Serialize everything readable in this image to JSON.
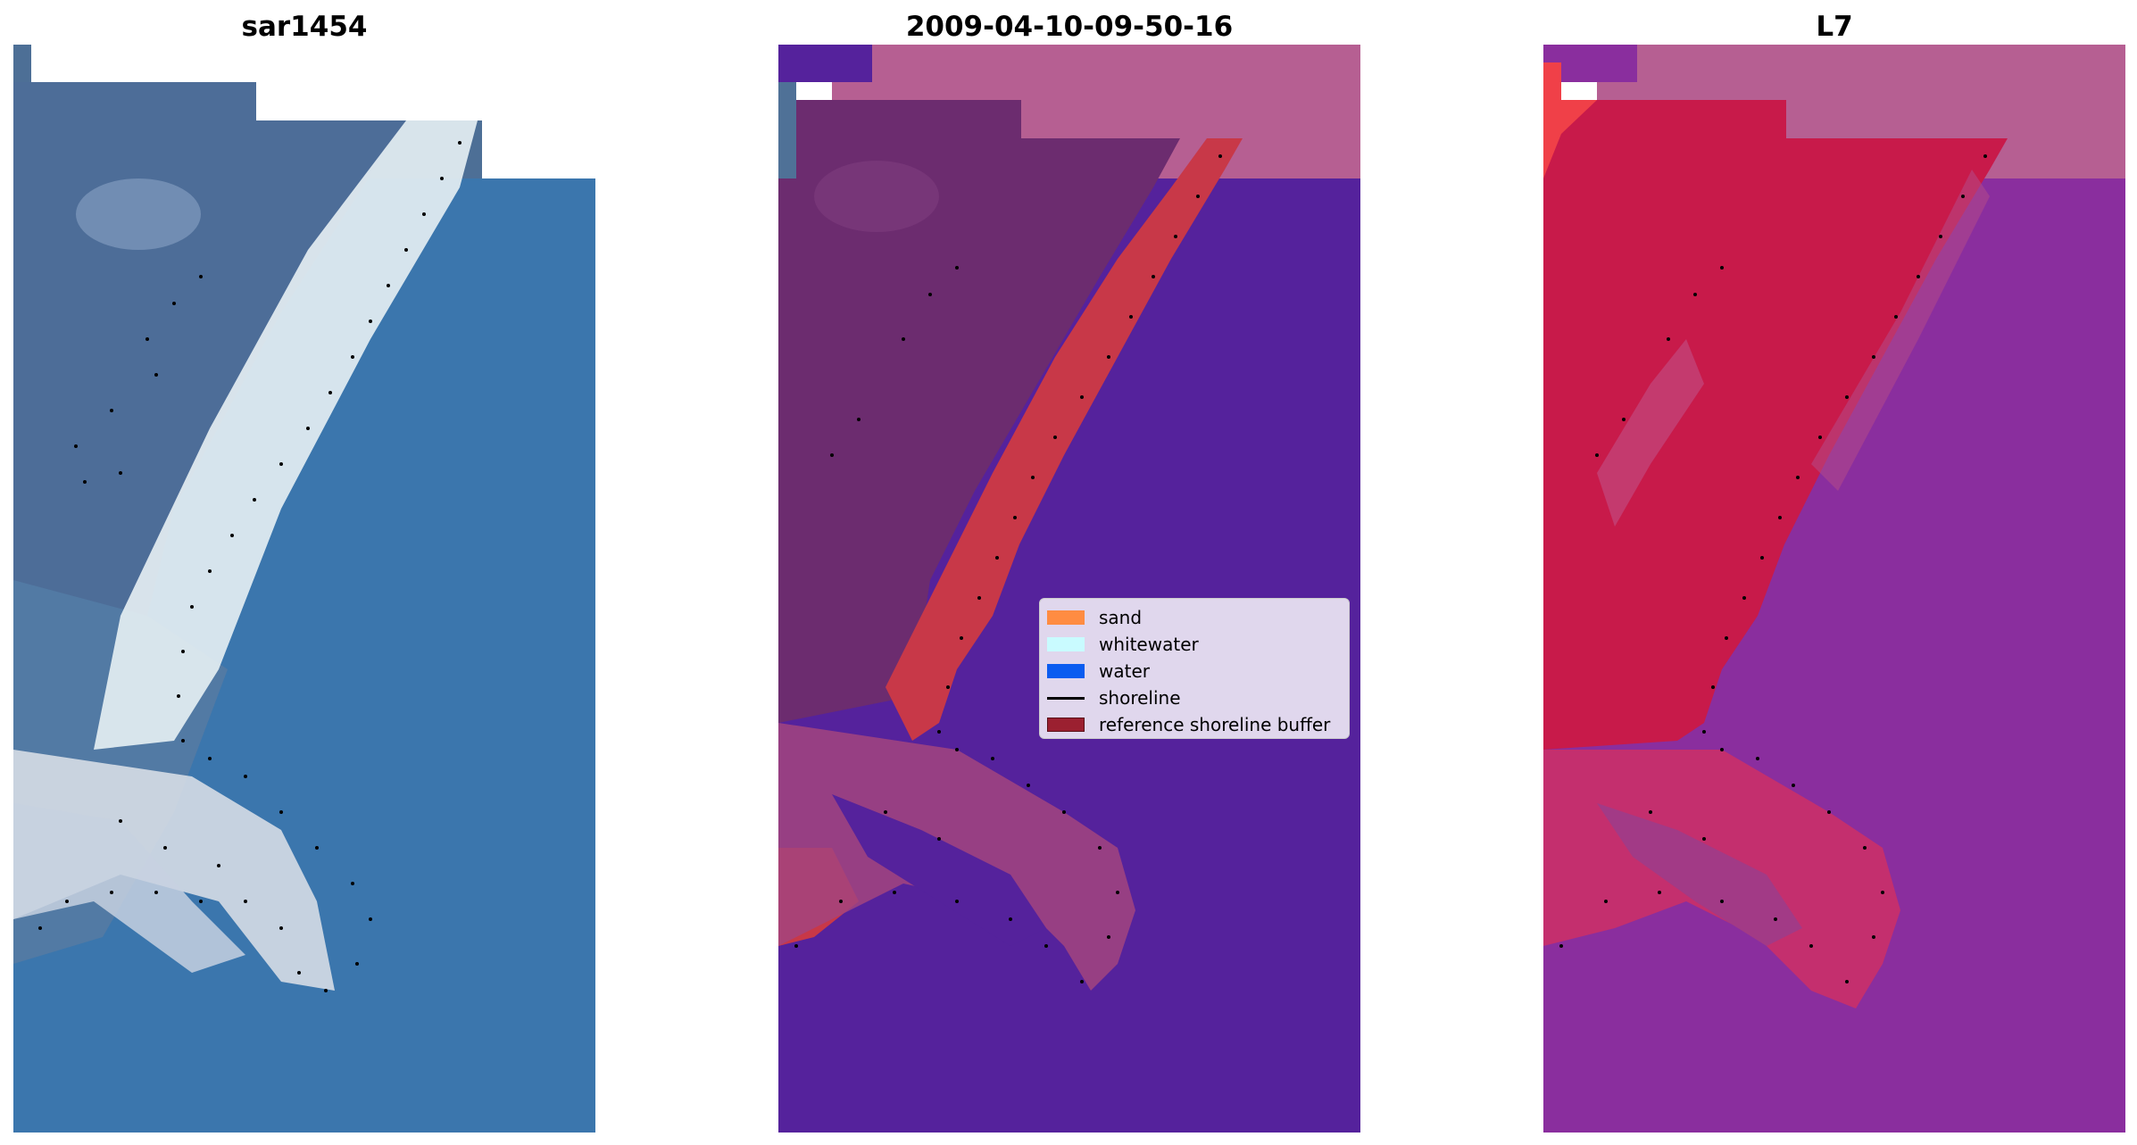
{
  "titles": {
    "left": "sar1454",
    "middle": "2009-04-10-09-50-16",
    "right": "L7"
  },
  "legend": {
    "items": [
      {
        "label": "sand",
        "color": "#ff8c42",
        "kind": "patch"
      },
      {
        "label": "whitewater",
        "color": "#c9fbff",
        "kind": "patch"
      },
      {
        "label": "water",
        "color": "#0b5cf0",
        "kind": "patch"
      },
      {
        "label": "shoreline",
        "color": "#000000",
        "kind": "line"
      },
      {
        "label": "reference shoreline buffer",
        "color": "#9b2030",
        "kind": "patch"
      }
    ]
  },
  "colors": {
    "rgb_water": "#3a78ad",
    "rgb_land": "#4c6f9a",
    "rgb_foam": "#e6ecee",
    "class_water": "#55229c",
    "class_land": "#6a2c6e",
    "class_buffer": "#c83848",
    "class_nodata": "#b65f92",
    "ndwi_land": "#c81a4a",
    "ndwi_water": "#8a2e9e",
    "ndwi_nodata": "#b65f92"
  }
}
